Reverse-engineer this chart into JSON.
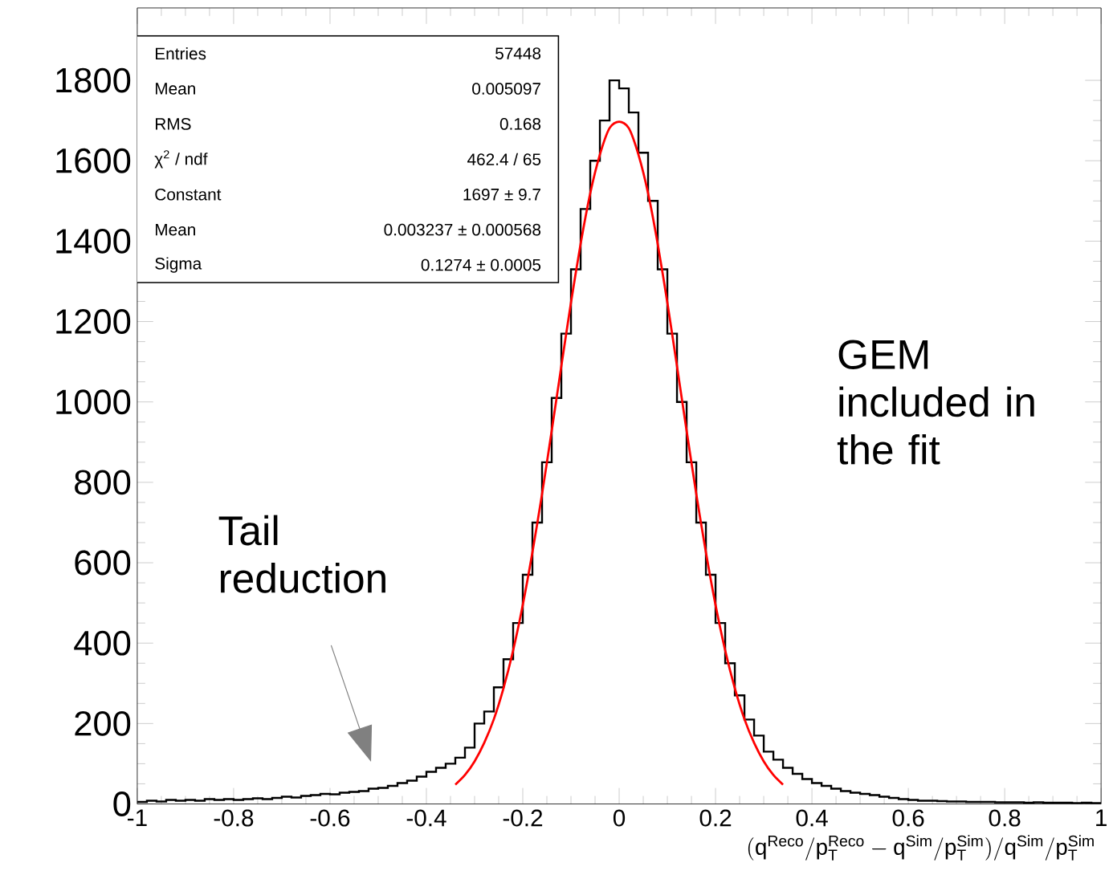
{
  "chart_data": {
    "type": "histogram",
    "xlabel": "(\\mathrm{q}^{\\mathrm{Reco}}/\\mathrm{p}_{\\mathrm{T}}^{\\mathrm{Reco}} - \\mathrm{q}^{\\mathrm{Sim}}/\\mathrm{p}_{\\mathrm{T}}^{\\mathrm{Sim}}) / \\mathrm{q}^{\\mathrm{Sim}}/\\mathrm{p}_{\\mathrm{T}}^{\\mathrm{Sim}}",
    "bins": [
      -1,
      -0.98,
      -0.96,
      -0.94,
      -0.92,
      -0.9,
      -0.88,
      -0.86,
      -0.84,
      -0.82,
      -0.8,
      -0.78,
      -0.76,
      -0.74,
      -0.72,
      -0.7,
      -0.68,
      -0.66,
      -0.64,
      -0.62,
      -0.6,
      -0.58,
      -0.56,
      -0.54,
      -0.52,
      -0.5,
      -0.48,
      -0.46,
      -0.44,
      -0.42,
      -0.4,
      -0.38,
      -0.36,
      -0.34,
      -0.32,
      -0.3,
      -0.28,
      -0.26,
      -0.24,
      -0.22,
      -0.2,
      -0.18,
      -0.16,
      -0.14,
      -0.12,
      -0.1,
      -0.08,
      -0.06,
      -0.04,
      -0.02,
      0,
      0.02,
      0.04,
      0.06,
      0.08,
      0.1,
      0.12,
      0.14,
      0.16,
      0.18,
      0.2,
      0.22,
      0.24,
      0.26,
      0.28,
      0.3,
      0.32,
      0.34,
      0.36,
      0.38,
      0.4,
      0.42,
      0.44,
      0.46,
      0.48,
      0.5,
      0.52,
      0.54,
      0.56,
      0.58,
      0.6,
      0.62,
      0.64,
      0.66,
      0.68,
      0.7,
      0.72,
      0.74,
      0.76,
      0.78,
      0.8,
      0.82,
      0.84,
      0.86,
      0.88,
      0.9,
      0.92,
      0.94,
      0.96,
      0.98,
      1
    ],
    "series": [
      {
        "type": "histogram",
        "color": "#000000",
        "values": [
          5,
          8,
          6,
          10,
          8,
          10,
          8,
          12,
          10,
          12,
          10,
          12,
          14,
          12,
          15,
          18,
          16,
          20,
          22,
          25,
          24,
          28,
          30,
          32,
          38,
          40,
          45,
          52,
          58,
          68,
          80,
          90,
          100,
          115,
          140,
          200,
          230,
          290,
          360,
          450,
          570,
          700,
          850,
          1010,
          1170,
          1330,
          1480,
          1600,
          1700,
          1800,
          1780,
          1720,
          1620,
          1500,
          1330,
          1170,
          1000,
          850,
          700,
          570,
          450,
          350,
          270,
          210,
          170,
          130,
          110,
          90,
          75,
          62,
          52,
          45,
          38,
          32,
          28,
          25,
          22,
          18,
          15,
          12,
          10,
          8,
          8,
          7,
          6,
          6,
          5,
          5,
          5,
          4,
          4,
          4,
          3,
          4,
          3,
          3,
          3,
          2,
          3,
          2
        ]
      },
      {
        "type": "line",
        "color": "#ff0000",
        "x": [
          -0.34,
          -0.32,
          -0.3,
          -0.28,
          -0.26,
          -0.24,
          -0.22,
          -0.2,
          -0.18,
          -0.16,
          -0.14,
          -0.12,
          -0.1,
          -0.08,
          -0.06,
          -0.04,
          -0.02,
          0,
          0.02,
          0.04,
          0.06,
          0.08,
          0.1,
          0.12,
          0.14,
          0.16,
          0.18,
          0.2,
          0.22,
          0.24,
          0.26,
          0.28,
          0.3,
          0.32,
          0.34
        ],
        "values": [
          48,
          72,
          106,
          152,
          211,
          288,
          382,
          495,
          626,
          771,
          928,
          1089,
          1247,
          1393,
          1519,
          1615,
          1681,
          1697,
          1681,
          1615,
          1519,
          1393,
          1247,
          1089,
          928,
          771,
          626,
          495,
          382,
          288,
          211,
          152,
          106,
          72,
          48
        ]
      }
    ],
    "xlim": [
      -1,
      1
    ],
    "xticks": [
      -1,
      -0.8,
      -0.6,
      -0.4,
      -0.2,
      0,
      0.2,
      0.4,
      0.6,
      0.8,
      1
    ],
    "ylim": [
      0,
      1980
    ],
    "yticks": [
      0,
      200,
      400,
      600,
      800,
      1000,
      1200,
      1400,
      1600,
      1800
    ],
    "annotations": [
      "Entries",
      "57448",
      "Mean",
      "0.005097",
      "RMS",
      "0.168",
      "χ$^{2}$ / ndf",
      "462.4 / 65",
      "Constant",
      "1697 ± 9.7",
      "Mean",
      "0.003237 ± 0.000568",
      "Sigma",
      "0.1274 ± 0.0005",
      "Tail reduction",
      "GEM included in the fit"
    ],
    "grid": false
  }
}
